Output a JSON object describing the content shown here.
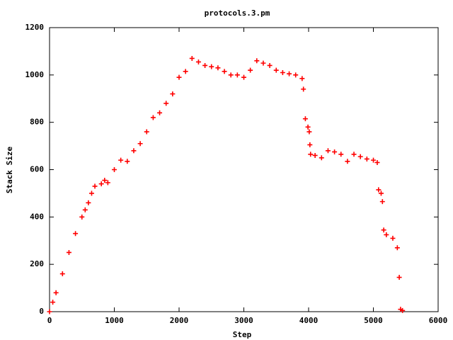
{
  "chart_data": {
    "type": "scatter",
    "title": "protocols.3.pm",
    "x_label": "Step",
    "y_label": "Stack Size",
    "marker": "+",
    "color": "#ff0000",
    "x": [
      0,
      50,
      100,
      200,
      300,
      400,
      500,
      550,
      600,
      650,
      700,
      800,
      850,
      900,
      1000,
      1100,
      1200,
      1300,
      1400,
      1500,
      1600,
      1700,
      1800,
      1900,
      2000,
      2100,
      2200,
      2300,
      2400,
      2500,
      2600,
      2700,
      2800,
      2900,
      3000,
      3100,
      3200,
      3300,
      3400,
      3500,
      3600,
      3700,
      3800,
      3900,
      3920,
      3950,
      3990,
      4010,
      4020,
      4030,
      4100,
      4200,
      4300,
      4400,
      4500,
      4600,
      4700,
      4800,
      4900,
      5000,
      5060,
      5080,
      5120,
      5140,
      5160,
      5200,
      5300,
      5370,
      5400,
      5420,
      5450
    ],
    "values": [
      0,
      40,
      80,
      160,
      250,
      330,
      400,
      430,
      460,
      500,
      530,
      540,
      555,
      545,
      600,
      640,
      635,
      680,
      710,
      760,
      820,
      840,
      880,
      920,
      990,
      1015,
      1070,
      1055,
      1040,
      1035,
      1030,
      1015,
      1000,
      1000,
      990,
      1020,
      1060,
      1050,
      1040,
      1020,
      1010,
      1005,
      1000,
      985,
      940,
      815,
      780,
      760,
      705,
      665,
      660,
      650,
      680,
      675,
      665,
      635,
      665,
      655,
      645,
      640,
      630,
      515,
      500,
      465,
      345,
      325,
      310,
      270,
      145,
      10,
      5
    ],
    "xlim": [
      0,
      6000
    ],
    "xticks": [
      0,
      1000,
      2000,
      3000,
      4000,
      5000,
      6000
    ],
    "ylim": [
      0,
      1200
    ],
    "yticks": [
      0,
      200,
      400,
      600,
      800,
      1000,
      1200
    ]
  }
}
